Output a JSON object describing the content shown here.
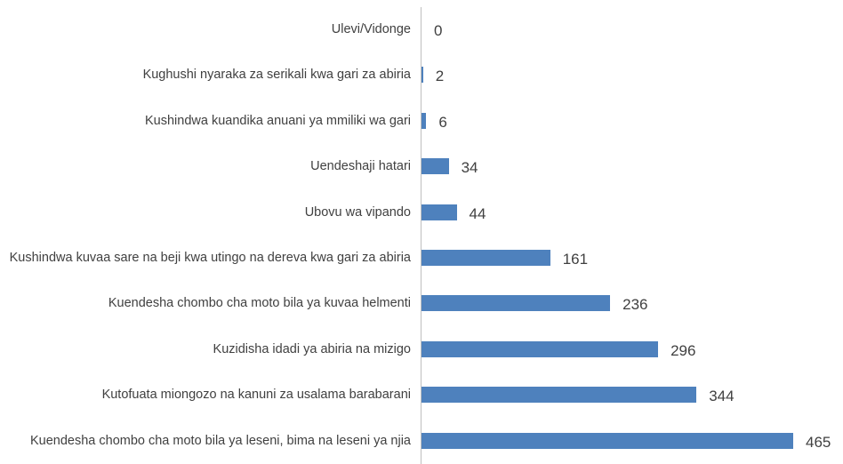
{
  "chart_data": {
    "type": "bar",
    "orientation": "horizontal",
    "color": "#4e81bd",
    "categories": [
      "Ulevi/Vidonge",
      "Kughushi nyaraka za serikali kwa gari za abiria",
      "Kushindwa kuandika anuani  ya mmiliki wa gari",
      "Uendeshaji hatari",
      "Ubovu wa vipando",
      "Kushindwa kuvaa sare na beji kwa utingo na dereva  kwa gari za abiria",
      "Kuendesha chombo cha moto bila ya kuvaa helmenti",
      "Kuzidisha idadi  ya abiria na mizigo",
      "Kutofuata miongozo na kanuni za usalama barabarani",
      "Kuendesha chombo cha moto bila ya leseni, bima na leseni ya njia"
    ],
    "values": [
      0,
      2,
      6,
      34,
      44,
      161,
      236,
      296,
      344,
      465
    ]
  }
}
